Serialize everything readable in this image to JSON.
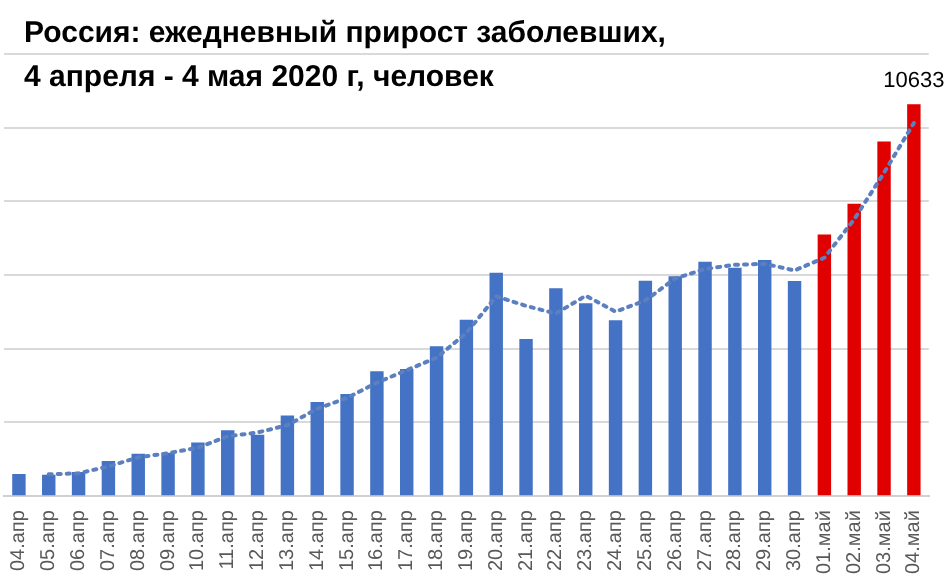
{
  "chart_data": {
    "type": "bar",
    "title": "Россия: ежедневный прирост заболевших, 4 апреля - 4 мая 2020 г, человек",
    "categories": [
      "04.апр",
      "05.апр",
      "06.апр",
      "07.апр",
      "08.апр",
      "09.апр",
      "10.апр",
      "11.апр",
      "12.апр",
      "13.апр",
      "14.апр",
      "15.апр",
      "16.апр",
      "17.апр",
      "18.апр",
      "19.апр",
      "20.апр",
      "21.апр",
      "22.апр",
      "23.апр",
      "24.апр",
      "25.апр",
      "26.апр",
      "27.апр",
      "28.апр",
      "29.апр",
      "30.апр",
      "01.май",
      "02.май",
      "03.май",
      "04.май"
    ],
    "series": [
      {
        "values": [
          601,
          582,
          658,
          954,
          1154,
          1175,
          1459,
          1786,
          1667,
          2186,
          2558,
          2774,
          3388,
          3448,
          4070,
          4785,
          6060,
          4268,
          5642,
          5236,
          4774,
          5849,
          5966,
          6361,
          6198,
          6411,
          5841,
          7099,
          7933,
          9623,
          10633
        ],
        "colors": [
          "#4472c4",
          "#4472c4",
          "#4472c4",
          "#4472c4",
          "#4472c4",
          "#4472c4",
          "#4472c4",
          "#4472c4",
          "#4472c4",
          "#4472c4",
          "#4472c4",
          "#4472c4",
          "#4472c4",
          "#4472c4",
          "#4472c4",
          "#4472c4",
          "#4472c4",
          "#4472c4",
          "#4472c4",
          "#4472c4",
          "#4472c4",
          "#4472c4",
          "#4472c4",
          "#4472c4",
          "#4472c4",
          "#4472c4",
          "#4472c4",
          "#e00000",
          "#e00000",
          "#e00000",
          "#e00000"
        ],
        "value_labels": [
          null,
          null,
          null,
          null,
          null,
          null,
          null,
          null,
          null,
          null,
          null,
          null,
          null,
          null,
          null,
          null,
          null,
          null,
          null,
          null,
          null,
          null,
          null,
          null,
          null,
          null,
          null,
          null,
          null,
          null,
          "10633"
        ]
      },
      {
        "type": "line",
        "color": "#5b7fbf",
        "line_style": "dotted",
        "marker": "none",
        "values": [
          null,
          592,
          620,
          806,
          1054,
          1165,
          1317,
          1623,
          1727,
          1927,
          2372,
          2666,
          3081,
          3418,
          3759,
          4428,
          5423,
          5164,
          4955,
          5439,
          5005,
          5312,
          5908,
          6164,
          6280,
          6305,
          6126,
          6470,
          7516,
          8778,
          10128
        ]
      }
    ],
    "ylim": [
      0,
      12000
    ],
    "yticks": [
      {
        "value": 0,
        "label": null
      },
      {
        "value": 2000,
        "label": null
      },
      {
        "value": 4000,
        "label": null
      },
      {
        "value": 6000,
        "label": null
      },
      {
        "value": 8000,
        "label": null
      },
      {
        "value": 10000,
        "label": null
      },
      {
        "value": 12000,
        "label": null
      }
    ],
    "grid": "y",
    "tick_labels": "x",
    "legend": false
  }
}
